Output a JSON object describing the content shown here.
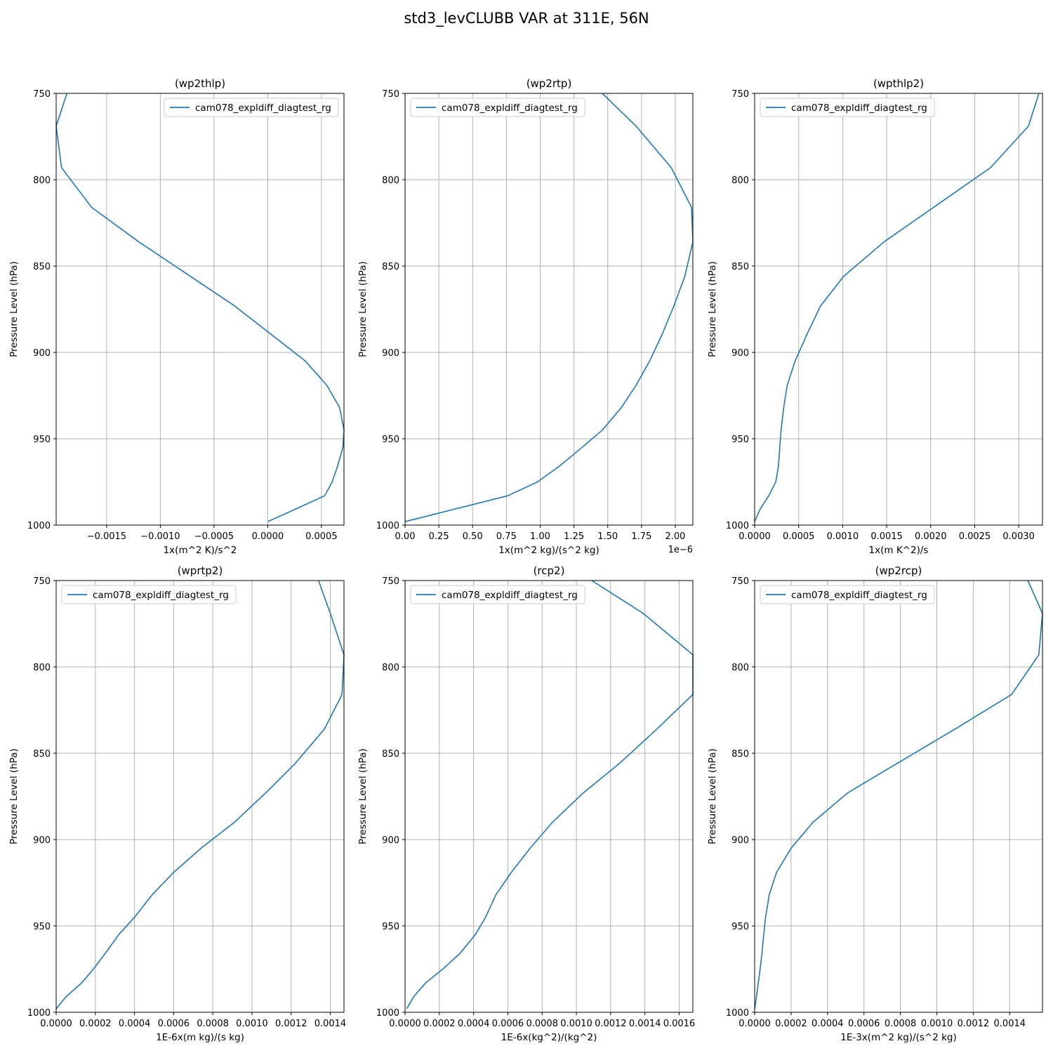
{
  "title": "std3_levCLUBB VAR at 311E, 56N",
  "chart_data": [
    {
      "type": "line",
      "title": "(wp2thlp)",
      "xlabel": "1x(m^2 K)/s^2",
      "ylabel": "Pressure Level (hPa)",
      "x_offset_text": "",
      "xlim": [
        -0.00197,
        0.00071
      ],
      "ylim": [
        1000,
        750
      ],
      "xticks": [
        -0.0015,
        -0.001,
        -0.0005,
        0,
        0.0005
      ],
      "xtick_labels": [
        "−0.0015",
        "−0.0010",
        "−0.0005",
        "0.0000",
        "0.0005"
      ],
      "yticks": [
        750,
        800,
        850,
        900,
        950,
        1000
      ],
      "ytick_labels": [
        "750",
        "800",
        "850",
        "900",
        "950",
        "1000"
      ],
      "grid": true,
      "legend": "upper right",
      "series": [
        {
          "name": "cam078_expldiff_diagtest_rg",
          "x": [
            -0.00187,
            -0.00197,
            -0.00192,
            -0.00164,
            -0.0012,
            -0.00031,
            0.0,
            0.00035,
            0.00055,
            0.00067,
            0.00071,
            0.0007,
            0.00065,
            0.0006,
            0.00053,
            0.00025,
            0.0
          ],
          "y": [
            750,
            769,
            793,
            816,
            836,
            873,
            888,
            905,
            919,
            932,
            945,
            955,
            966,
            975,
            983,
            991,
            998
          ]
        }
      ]
    },
    {
      "type": "line",
      "title": "(wp2rtp)",
      "xlabel": "1x(m^2 kg)/(s^2 kg)",
      "ylabel": "Pressure Level (hPa)",
      "x_offset_text": "1e−6",
      "xlim": [
        0,
        2.13
      ],
      "ylim": [
        1000,
        750
      ],
      "xticks": [
        0,
        0.25,
        0.5,
        0.75,
        1.0,
        1.25,
        1.5,
        1.75,
        2.0
      ],
      "xtick_labels": [
        "0.00",
        "0.25",
        "0.50",
        "0.75",
        "1.00",
        "1.25",
        "1.50",
        "1.75",
        "2.00"
      ],
      "yticks": [
        750,
        800,
        850,
        900,
        950,
        1000
      ],
      "ytick_labels": [
        "750",
        "800",
        "850",
        "900",
        "950",
        "1000"
      ],
      "grid": true,
      "legend": "upper left",
      "series": [
        {
          "name": "cam078_expldiff_diagtest_rg",
          "x": [
            1.46,
            1.71,
            1.97,
            2.12,
            2.13,
            2.07,
            1.99,
            1.9,
            1.81,
            1.71,
            1.6,
            1.46,
            1.31,
            1.14,
            0.98,
            0.76,
            0.0
          ],
          "y": [
            750,
            769,
            793,
            816,
            836,
            856,
            873,
            890,
            905,
            919,
            932,
            945,
            955,
            966,
            975,
            983,
            998
          ]
        }
      ]
    },
    {
      "type": "line",
      "title": "(wpthlp2)",
      "xlabel": "1x(m K^2)/s",
      "ylabel": "Pressure Level (hPa)",
      "x_offset_text": "",
      "xlim": [
        0,
        0.00327
      ],
      "ylim": [
        1000,
        750
      ],
      "xticks": [
        0,
        0.0005,
        0.001,
        0.0015,
        0.002,
        0.0025,
        0.003
      ],
      "xtick_labels": [
        "0.0000",
        "0.0005",
        "0.0010",
        "0.0015",
        "0.0020",
        "0.0025",
        "0.0030"
      ],
      "yticks": [
        750,
        800,
        850,
        900,
        950,
        1000
      ],
      "ytick_labels": [
        "750",
        "800",
        "850",
        "900",
        "950",
        "1000"
      ],
      "grid": true,
      "legend": "upper left",
      "series": [
        {
          "name": "cam078_expldiff_diagtest_rg",
          "x": [
            0.00323,
            0.00311,
            0.00268,
            0.00147,
            0.00101,
            0.00075,
            0.00059,
            0.00046,
            0.00037,
            0.00033,
            0.0003,
            0.00027,
            0.00024,
            0.00016,
            6e-05,
            0.0
          ],
          "y": [
            750,
            769,
            793,
            836,
            856,
            873,
            890,
            905,
            919,
            932,
            945,
            966,
            975,
            983,
            991,
            998
          ]
        }
      ]
    },
    {
      "type": "line",
      "title": "(wprtp2)",
      "xlabel": "1E-6x(m kg)/(s kg)",
      "ylabel": "Pressure Level (hPa)",
      "x_offset_text": "",
      "xlim": [
        0,
        0.00147
      ],
      "ylim": [
        1000,
        750
      ],
      "xticks": [
        0,
        0.0002,
        0.0004,
        0.0006,
        0.0008,
        0.001,
        0.0012,
        0.0014
      ],
      "xtick_labels": [
        "0.0000",
        "0.0002",
        "0.0004",
        "0.0006",
        "0.0008",
        "0.0010",
        "0.0012",
        "0.0014"
      ],
      "yticks": [
        750,
        800,
        850,
        900,
        950,
        1000
      ],
      "ytick_labels": [
        "750",
        "800",
        "850",
        "900",
        "950",
        "1000"
      ],
      "grid": true,
      "legend": "upper left",
      "series": [
        {
          "name": "cam078_expldiff_diagtest_rg",
          "x": [
            0.00134,
            0.0014,
            0.00147,
            0.00146,
            0.00137,
            0.00122,
            0.00107,
            0.00091,
            0.00074,
            0.0006,
            0.00049,
            0.0004,
            0.00032,
            0.00025,
            0.00019,
            0.00013,
            5e-05,
            0.0
          ],
          "y": [
            750,
            769,
            793,
            816,
            836,
            856,
            873,
            890,
            905,
            919,
            932,
            945,
            955,
            966,
            975,
            983,
            991,
            998
          ]
        }
      ]
    },
    {
      "type": "line",
      "title": "(rcp2)",
      "xlabel": "1E-6x(kg^2)/(kg^2)",
      "ylabel": "Pressure Level (hPa)",
      "x_offset_text": "",
      "xlim": [
        0,
        0.00168
      ],
      "ylim": [
        1000,
        750
      ],
      "xticks": [
        0,
        0.0002,
        0.0004,
        0.0006,
        0.0008,
        0.001,
        0.0012,
        0.0014,
        0.0016
      ],
      "xtick_labels": [
        "0.0000",
        "0.0002",
        "0.0004",
        "0.0006",
        "0.0008",
        "0.0010",
        "0.0012",
        "0.0014",
        "0.0016"
      ],
      "yticks": [
        750,
        800,
        850,
        900,
        950,
        1000
      ],
      "ytick_labels": [
        "750",
        "800",
        "850",
        "900",
        "950",
        "1000"
      ],
      "grid": true,
      "legend": "upper left",
      "series": [
        {
          "name": "cam078_expldiff_diagtest_rg",
          "x": [
            0.00109,
            0.00139,
            0.00168,
            0.00168,
            0.00147,
            0.00125,
            0.00104,
            0.00086,
            0.00073,
            0.00062,
            0.00053,
            0.00047,
            0.00041,
            0.00032,
            0.00022,
            0.00012,
            5e-05,
            1e-05
          ],
          "y": [
            750,
            769,
            793,
            816,
            836,
            856,
            873,
            890,
            905,
            919,
            932,
            945,
            955,
            966,
            975,
            983,
            991,
            998
          ]
        }
      ]
    },
    {
      "type": "line",
      "title": "(wp2rcp)",
      "xlabel": "1E-3x(m^2 kg)/(s^2 kg)",
      "ylabel": "Pressure Level (hPa)",
      "x_offset_text": "",
      "xlim": [
        0,
        0.00158
      ],
      "ylim": [
        1000,
        750
      ],
      "xticks": [
        0,
        0.0002,
        0.0004,
        0.0006,
        0.0008,
        0.001,
        0.0012,
        0.0014
      ],
      "xtick_labels": [
        "0.0000",
        "0.0002",
        "0.0004",
        "0.0006",
        "0.0008",
        "0.0010",
        "0.0012",
        "0.0014"
      ],
      "yticks": [
        750,
        800,
        850,
        900,
        950,
        1000
      ],
      "ytick_labels": [
        "750",
        "800",
        "850",
        "900",
        "950",
        "1000"
      ],
      "grid": true,
      "legend": "upper left",
      "series": [
        {
          "name": "cam078_expldiff_diagtest_rg",
          "x": [
            0.0015,
            0.00158,
            0.00156,
            0.00141,
            0.0011,
            0.00078,
            0.00051,
            0.00032,
            0.0002,
            0.00012,
            8e-05,
            6e-05,
            5e-05,
            4e-05,
            3e-05,
            2e-05,
            1e-05,
            0.0
          ],
          "y": [
            750,
            769,
            793,
            816,
            836,
            856,
            873,
            890,
            905,
            919,
            932,
            945,
            955,
            966,
            975,
            983,
            991,
            998
          ]
        }
      ]
    }
  ],
  "colors": {
    "line": "#1f77b4",
    "grid": "#b0b0b0",
    "axis": "#000000"
  }
}
